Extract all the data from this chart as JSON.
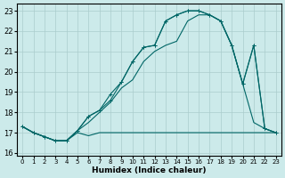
{
  "xlabel": "Humidex (Indice chaleur)",
  "bg_color": "#cceaea",
  "grid_color": "#aacccc",
  "line_color": "#006666",
  "xlim": [
    -0.5,
    23.5
  ],
  "ylim": [
    15.85,
    23.35
  ],
  "yticks": [
    16,
    17,
    18,
    19,
    20,
    21,
    22,
    23
  ],
  "xticks": [
    0,
    1,
    2,
    3,
    4,
    5,
    6,
    7,
    8,
    9,
    10,
    11,
    12,
    13,
    14,
    15,
    16,
    17,
    18,
    19,
    20,
    21,
    22,
    23
  ],
  "line1_x": [
    0,
    1,
    2,
    3,
    4,
    5,
    6,
    7,
    8,
    9,
    10,
    11,
    12,
    13,
    14,
    15,
    16,
    17,
    18,
    19,
    20,
    21,
    22,
    23
  ],
  "line1_y": [
    17.3,
    17.0,
    16.8,
    16.6,
    16.6,
    17.0,
    16.85,
    17.0,
    17.0,
    17.0,
    17.0,
    17.0,
    17.0,
    17.0,
    17.0,
    17.0,
    17.0,
    17.0,
    17.0,
    17.0,
    17.0,
    17.0,
    17.0,
    17.0
  ],
  "line2_x": [
    0,
    1,
    2,
    3,
    4,
    5,
    6,
    7,
    8,
    9,
    10,
    11,
    12,
    13,
    14,
    15,
    16,
    17,
    18,
    19,
    20,
    21,
    22,
    23
  ],
  "line2_y": [
    17.3,
    17.0,
    16.8,
    16.6,
    16.6,
    17.1,
    17.5,
    18.0,
    18.5,
    19.2,
    19.6,
    20.5,
    21.0,
    21.3,
    21.5,
    22.5,
    22.8,
    22.8,
    22.5,
    21.3,
    19.4,
    17.5,
    17.2,
    17.0
  ],
  "line3_x": [
    0,
    1,
    2,
    3,
    4,
    5,
    6,
    7,
    8,
    9,
    10,
    11,
    12,
    13,
    14,
    15,
    16,
    17,
    18,
    19,
    20,
    21,
    22,
    23
  ],
  "line3_y": [
    17.3,
    17.0,
    16.8,
    16.6,
    16.6,
    17.1,
    17.8,
    18.1,
    18.6,
    19.5,
    20.5,
    21.2,
    21.3,
    22.5,
    22.8,
    23.0,
    23.0,
    22.8,
    22.5,
    21.3,
    19.4,
    21.3,
    17.2,
    17.0
  ],
  "line4_x": [
    0,
    1,
    2,
    3,
    4,
    5,
    6,
    7,
    8,
    9,
    10,
    11,
    12,
    13,
    14,
    15,
    16,
    17,
    18,
    19,
    20,
    21,
    22,
    23
  ],
  "line4_y": [
    17.3,
    17.0,
    16.8,
    16.6,
    16.6,
    17.1,
    17.8,
    18.1,
    18.9,
    19.5,
    20.5,
    21.2,
    21.3,
    22.5,
    22.8,
    23.0,
    23.0,
    22.8,
    22.5,
    21.3,
    19.4,
    21.3,
    17.2,
    17.0
  ],
  "label_fontsize": 6.5,
  "tick_fontsize": 5.5
}
